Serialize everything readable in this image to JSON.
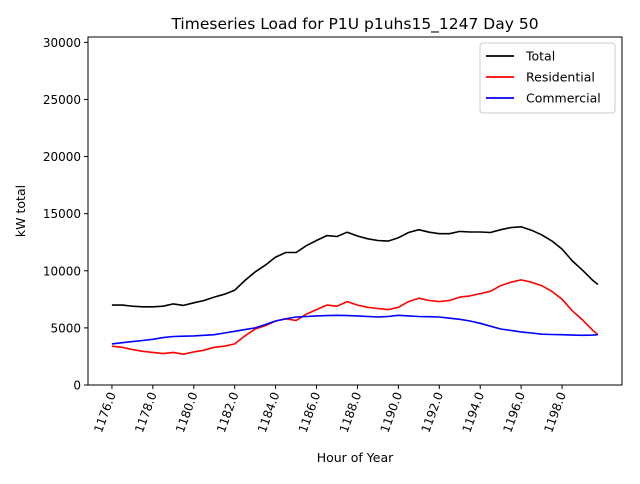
{
  "chart_data": {
    "type": "line",
    "title": "Timeseries Load for P1U p1uhs15_1247  Day 50",
    "xlabel": "Hour of Year",
    "ylabel": "kW total",
    "xlim": [
      1174.83,
      1200.93
    ],
    "ylim": [
      0,
      30470
    ],
    "xticks": [
      1176,
      1178,
      1180,
      1182,
      1184,
      1186,
      1188,
      1190,
      1192,
      1194,
      1196,
      1198
    ],
    "xtick_labels": [
      "1176.0",
      "1178.0",
      "1180.0",
      "1182.0",
      "1184.0",
      "1186.0",
      "1188.0",
      "1190.0",
      "1192.0",
      "1194.0",
      "1196.0",
      "1198.0"
    ],
    "yticks": [
      0,
      5000,
      10000,
      15000,
      20000,
      25000,
      30000
    ],
    "ytick_labels": [
      "0",
      "5000",
      "10000",
      "15000",
      "20000",
      "25000",
      "30000"
    ],
    "grid": false,
    "legend_position": "top-right",
    "x": [
      1176,
      1176.5,
      1177,
      1177.5,
      1178,
      1178.5,
      1179,
      1179.5,
      1180,
      1180.5,
      1181,
      1181.5,
      1182,
      1182.5,
      1183,
      1183.5,
      1184,
      1184.5,
      1185,
      1185.5,
      1186,
      1186.5,
      1187,
      1187.5,
      1188,
      1188.5,
      1189,
      1189.5,
      1190,
      1190.5,
      1191,
      1191.5,
      1192,
      1192.5,
      1193,
      1193.5,
      1194,
      1194.5,
      1195,
      1195.5,
      1196,
      1196.5,
      1197,
      1197.5,
      1198,
      1198.5,
      1199,
      1199.5,
      1199.75
    ],
    "series": [
      {
        "name": "Total",
        "color": "#000000",
        "values": [
          7000,
          7000,
          6900,
          6850,
          6850,
          6900,
          7100,
          6970,
          7200,
          7400,
          7700,
          7950,
          8300,
          9150,
          9900,
          10500,
          11200,
          11600,
          11600,
          12200,
          12650,
          13080,
          13000,
          13380,
          13050,
          12800,
          12650,
          12600,
          12900,
          13350,
          13600,
          13380,
          13250,
          13250,
          13450,
          13400,
          13400,
          13350,
          13600,
          13780,
          13850,
          13550,
          13150,
          12620,
          11900,
          10870,
          10050,
          9170,
          8800
        ]
      },
      {
        "name": "Residential",
        "color": "#ff0000",
        "values": [
          3400,
          3300,
          3100,
          2950,
          2850,
          2750,
          2850,
          2700,
          2900,
          3050,
          3300,
          3400,
          3600,
          4300,
          4900,
          5200,
          5600,
          5800,
          5650,
          6200,
          6600,
          7000,
          6900,
          7300,
          7000,
          6800,
          6700,
          6600,
          6800,
          7300,
          7600,
          7400,
          7300,
          7400,
          7700,
          7800,
          8000,
          8200,
          8700,
          9000,
          9200,
          9000,
          8700,
          8200,
          7500,
          6500,
          5700,
          4800,
          4400
        ]
      },
      {
        "name": "Commercial",
        "color": "#0000ff",
        "values": [
          3600,
          3700,
          3800,
          3900,
          4000,
          4150,
          4250,
          4270,
          4300,
          4350,
          4400,
          4550,
          4700,
          4850,
          5000,
          5300,
          5600,
          5800,
          5950,
          6000,
          6050,
          6080,
          6100,
          6080,
          6050,
          6000,
          5950,
          6000,
          6100,
          6050,
          6000,
          5980,
          5950,
          5850,
          5750,
          5600,
          5400,
          5150,
          4900,
          4780,
          4650,
          4550,
          4450,
          4420,
          4400,
          4370,
          4350,
          4370,
          4400
        ]
      }
    ]
  }
}
